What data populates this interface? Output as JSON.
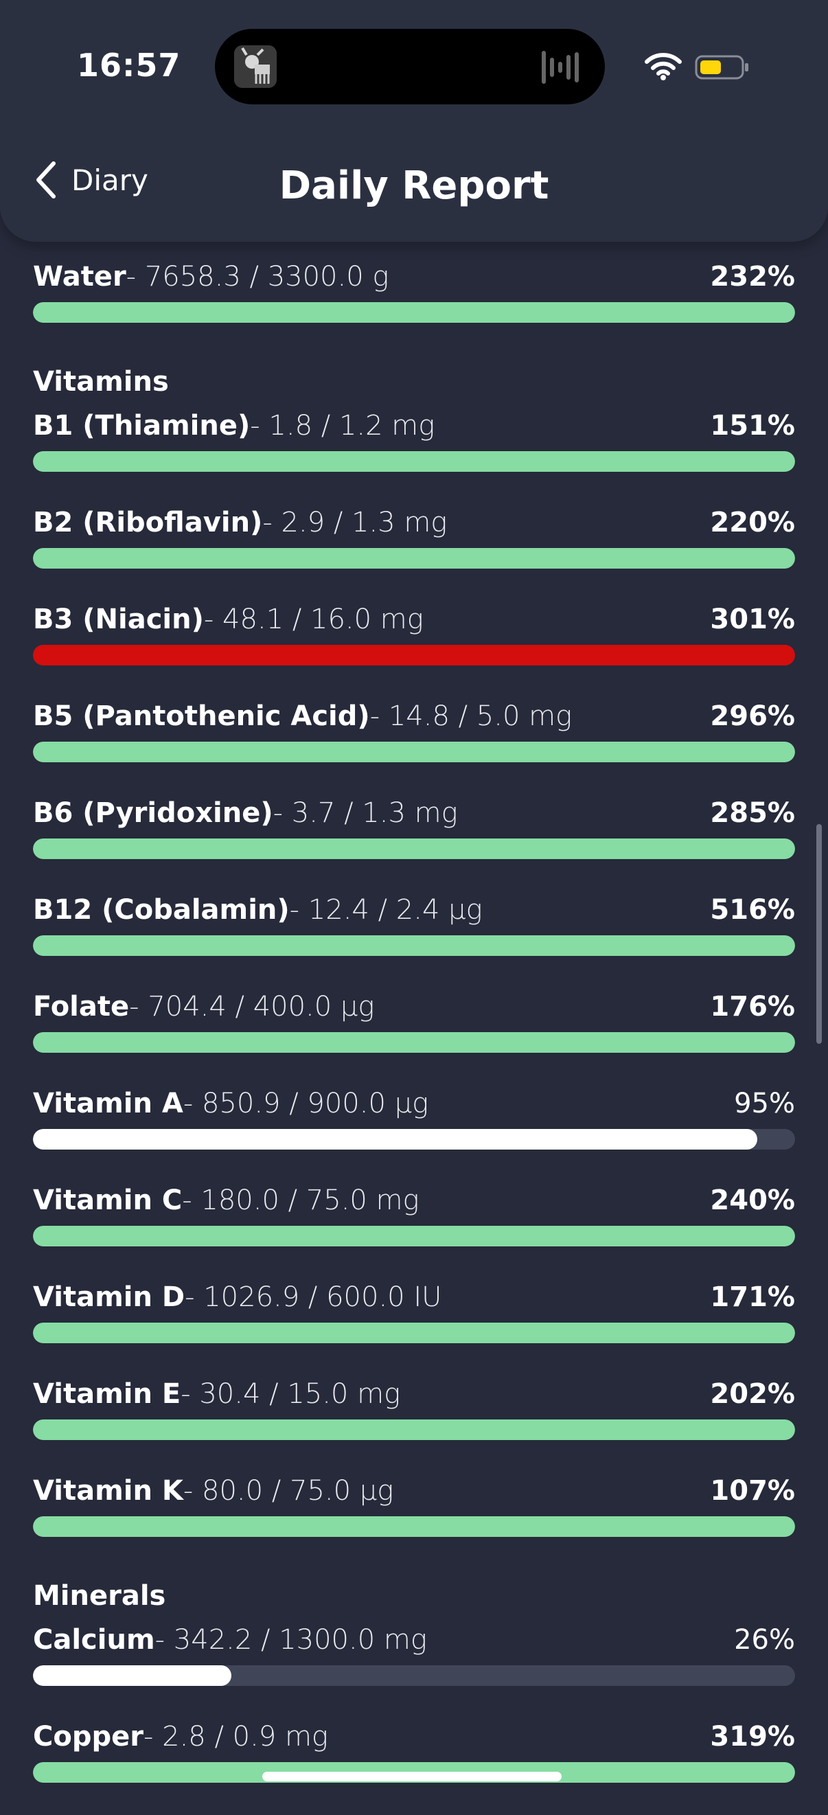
{
  "status": {
    "time": "16:57"
  },
  "header": {
    "back_label": "Diary",
    "title": "Daily Report"
  },
  "colors": {
    "over": "#86dca3",
    "excess": "#d40d0d",
    "under": "#ffffff"
  },
  "water": {
    "name": "Water",
    "value": "- 7658.3 / 3300.0 g",
    "percent": "232%",
    "fill": 100,
    "color": "#86dca3",
    "bold": true
  },
  "vitamins": {
    "title": "Vitamins",
    "items": [
      {
        "name": "B1 (Thiamine)",
        "value": "- 1.8 / 1.2 mg",
        "percent": "151%",
        "fill": 100,
        "color": "#86dca3",
        "bold": true
      },
      {
        "name": "B2 (Riboflavin)",
        "value": "- 2.9 / 1.3 mg",
        "percent": "220%",
        "fill": 100,
        "color": "#86dca3",
        "bold": true
      },
      {
        "name": "B3 (Niacin)",
        "value": "- 48.1 / 16.0 mg",
        "percent": "301%",
        "fill": 100,
        "color": "#d40d0d",
        "bold": true
      },
      {
        "name": "B5 (Pantothenic Acid)",
        "value": "- 14.8 / 5.0 mg",
        "percent": "296%",
        "fill": 100,
        "color": "#86dca3",
        "bold": true
      },
      {
        "name": "B6 (Pyridoxine)",
        "value": "- 3.7 / 1.3 mg",
        "percent": "285%",
        "fill": 100,
        "color": "#86dca3",
        "bold": true
      },
      {
        "name": "B12 (Cobalamin)",
        "value": "- 12.4 / 2.4 µg",
        "percent": "516%",
        "fill": 100,
        "color": "#86dca3",
        "bold": true
      },
      {
        "name": "Folate",
        "value": "- 704.4 / 400.0 µg",
        "percent": "176%",
        "fill": 100,
        "color": "#86dca3",
        "bold": true
      },
      {
        "name": "Vitamin A",
        "value": "- 850.9 / 900.0 µg",
        "percent": "95%",
        "fill": 95,
        "color": "#ffffff",
        "bold": false
      },
      {
        "name": "Vitamin C",
        "value": "- 180.0 / 75.0 mg",
        "percent": "240%",
        "fill": 100,
        "color": "#86dca3",
        "bold": true
      },
      {
        "name": "Vitamin D",
        "value": "- 1026.9 / 600.0 IU",
        "percent": "171%",
        "fill": 100,
        "color": "#86dca3",
        "bold": true
      },
      {
        "name": "Vitamin E",
        "value": "- 30.4 / 15.0 mg",
        "percent": "202%",
        "fill": 100,
        "color": "#86dca3",
        "bold": true
      },
      {
        "name": "Vitamin K",
        "value": "- 80.0 / 75.0 µg",
        "percent": "107%",
        "fill": 100,
        "color": "#86dca3",
        "bold": true
      }
    ]
  },
  "minerals": {
    "title": "Minerals",
    "items": [
      {
        "name": "Calcium",
        "value": "- 342.2 / 1300.0 mg",
        "percent": "26%",
        "fill": 26,
        "color": "#ffffff",
        "bold": false
      },
      {
        "name": "Copper",
        "value": "- 2.8 / 0.9 mg",
        "percent": "319%",
        "fill": 100,
        "color": "#86dca3",
        "bold": true
      }
    ]
  }
}
